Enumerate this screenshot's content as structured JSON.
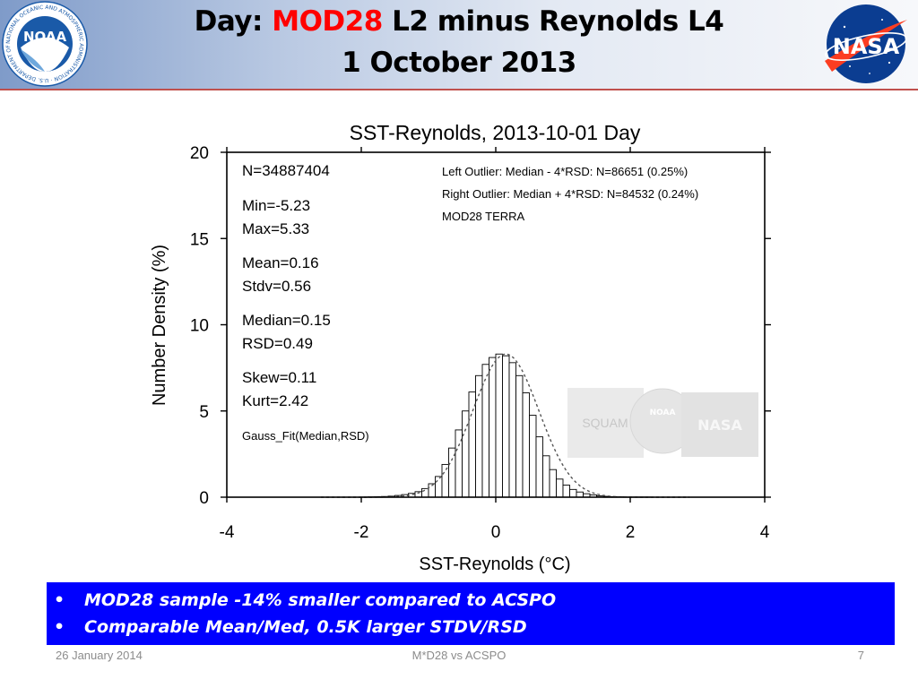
{
  "header": {
    "title_prefix": "Day: ",
    "title_highlight": "MOD28",
    "title_suffix": " L2 minus Reynolds L4",
    "subtitle": "1 October 2013",
    "left_logo": {
      "name": "noaa-logo",
      "text": "NOAA",
      "ring_text": "NATIONAL OCEANIC AND ATMOSPHERIC ADMINISTRATION · U.S. DEPARTMENT OF COMMERCE"
    },
    "right_logo": {
      "name": "nasa-logo",
      "text": "NASA"
    }
  },
  "chart_data": {
    "type": "bar",
    "title": "SST-Reynolds, 2013-10-01 Day",
    "xlabel": "SST-Reynolds (°C)",
    "ylabel": "Number Density (%)",
    "xlim": [
      -4,
      4
    ],
    "ylim": [
      0,
      20
    ],
    "xticks": [
      "-4",
      "-2",
      "0",
      "2",
      "4"
    ],
    "yticks": [
      "0",
      "5",
      "10",
      "15",
      "20"
    ],
    "bin_width": 0.1,
    "bin_centers": [
      -1.95,
      -1.85,
      -1.75,
      -1.65,
      -1.55,
      -1.45,
      -1.35,
      -1.25,
      -1.15,
      -1.05,
      -0.95,
      -0.85,
      -0.75,
      -0.65,
      -0.55,
      -0.45,
      -0.35,
      -0.25,
      -0.15,
      -0.05,
      0.05,
      0.15,
      0.25,
      0.35,
      0.45,
      0.55,
      0.65,
      0.75,
      0.85,
      0.95,
      1.05,
      1.15,
      1.25,
      1.35,
      1.45,
      1.55,
      1.65,
      1.75,
      1.85,
      1.95,
      2.05,
      2.15,
      2.25
    ],
    "values": [
      0.01,
      0.02,
      0.03,
      0.04,
      0.06,
      0.1,
      0.15,
      0.22,
      0.32,
      0.5,
      0.78,
      1.2,
      1.9,
      2.85,
      3.9,
      5.0,
      6.1,
      7.05,
      7.7,
      8.1,
      8.3,
      8.2,
      7.8,
      7.05,
      6.05,
      4.75,
      3.5,
      2.4,
      1.6,
      1.05,
      0.7,
      0.45,
      0.3,
      0.2,
      0.13,
      0.08,
      0.05,
      0.03,
      0.02,
      0.01,
      0.01,
      0.01,
      0.01
    ],
    "gauss_fit": {
      "median": 0.15,
      "rsd": 0.49
    },
    "stats": [
      "N=34887404",
      "Min=-5.23",
      "Max=5.33",
      "Mean=0.16",
      "Stdv=0.56",
      "Median=0.15",
      "RSD=0.49",
      "Skew=0.11",
      "Kurt=2.42",
      "Gauss_Fit(Median,RSD)"
    ],
    "annotations": [
      "Left Outlier:  Median - 4*RSD: N=86651 (0.25%)",
      "Right Outlier: Median + 4*RSD: N=84532 (0.24%)",
      "MOD28 TERRA"
    ],
    "watermark_logos": [
      "SQUAM",
      "NOAA",
      "NASA"
    ]
  },
  "bullets": [
    "MOD28 sample -14% smaller compared to ACSPO",
    "Comparable Mean/Med, 0.5K larger STDV/RSD"
  ],
  "bullet_marker": "•",
  "footer": {
    "date": "26 January 2014",
    "center": "M*D28 vs ACSPO",
    "page": "7"
  },
  "colors": {
    "bullet_bg": "#0000ff",
    "title_highlight": "#ff0000",
    "header_line": "#c0504d",
    "noaa_blue": "#1a5aa8",
    "nasa_blue": "#0b3d91"
  }
}
